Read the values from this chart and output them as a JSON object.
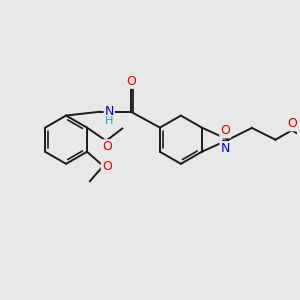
{
  "background_color": "#e8e8e8",
  "bond_color": "#1a1a1a",
  "atom_colors": {
    "O": "#e00000",
    "N": "#0000cc",
    "C": "#1a1a1a",
    "H": "#20a0a0"
  },
  "bond_width": 1.4,
  "figsize": [
    3.0,
    3.0
  ],
  "dpi": 100
}
